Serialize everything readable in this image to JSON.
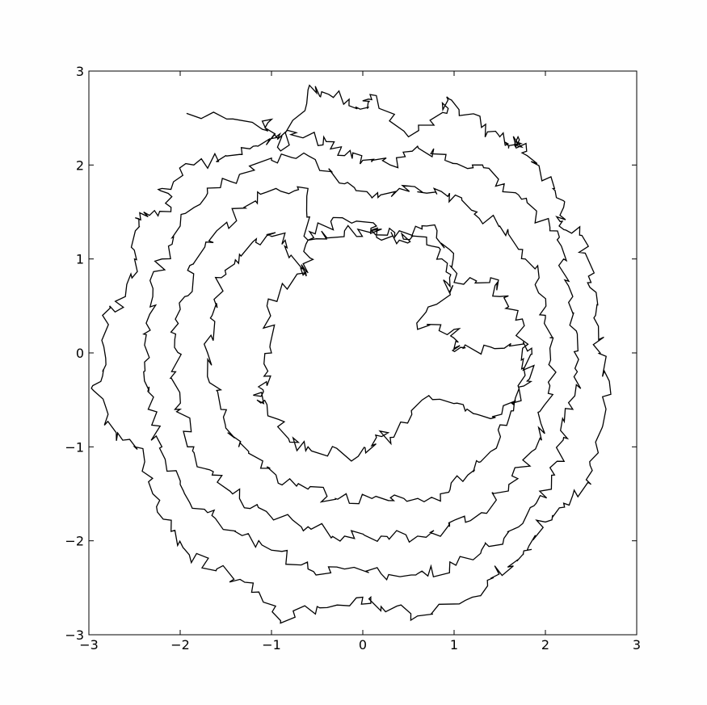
{
  "chart_data": {
    "type": "line",
    "title": "",
    "xlabel": "",
    "ylabel": "",
    "xlim": [
      -3,
      3
    ],
    "ylim": [
      -3,
      3
    ],
    "xticks": [
      -3,
      -2,
      -1,
      0,
      1,
      2,
      3
    ],
    "yticks": [
      -3,
      -2,
      -1,
      0,
      1,
      2,
      3
    ],
    "xtick_labels": [
      "−3",
      "−2",
      "−1",
      "0",
      "1",
      "2",
      "3"
    ],
    "ytick_labels": [
      "−3",
      "−2",
      "−1",
      "0",
      "1",
      "2",
      "3"
    ],
    "grid": false,
    "line_color": "#000000",
    "background": "#ffffff",
    "description": "Single continuous random-walk-like curve confined to an annulus, inner radius about 1.0 and outer radius about 2.8",
    "series": [
      {
        "values_sampled": [
          [
            -1.93,
            2.55
          ],
          [
            -1.1,
            2.38
          ],
          [
            -1.04,
            2.45
          ],
          [
            -0.9,
            2.15
          ],
          [
            -0.6,
            2.8
          ],
          [
            -0.45,
            2.78
          ],
          [
            -0.15,
            2.7
          ],
          [
            0.05,
            2.6
          ],
          [
            0.08,
            2.75
          ],
          [
            0.5,
            2.3
          ],
          [
            0.92,
            2.55
          ],
          [
            0.95,
            2.7
          ],
          [
            1.3,
            2.4
          ],
          [
            1.5,
            2.3
          ],
          [
            1.6,
            2.2
          ],
          [
            1.7,
            2.2
          ],
          [
            1.7,
            2.3
          ],
          [
            1.8,
            2.1
          ],
          [
            2.1,
            1.75
          ],
          [
            2.2,
            1.55
          ],
          [
            2.15,
            1.35
          ],
          [
            2.4,
            1.25
          ],
          [
            2.5,
            0.75
          ],
          [
            2.55,
            0.4
          ],
          [
            2.6,
            0.0
          ],
          [
            2.7,
            -0.3
          ],
          [
            2.55,
            -0.95
          ],
          [
            2.5,
            -1.4
          ],
          [
            2.2,
            -1.6
          ],
          [
            2.0,
            -1.8
          ],
          [
            1.8,
            -2.1
          ],
          [
            1.7,
            -2.2
          ],
          [
            1.4,
            -2.4
          ],
          [
            1.2,
            -2.6
          ],
          [
            0.6,
            -2.8
          ],
          [
            0.2,
            -2.7
          ],
          [
            0.0,
            -2.6
          ],
          [
            -0.5,
            -2.7
          ],
          [
            -0.9,
            -2.85
          ],
          [
            -1.2,
            -2.45
          ],
          [
            -1.6,
            -2.3
          ],
          [
            -1.9,
            -2.15
          ],
          [
            -2.1,
            -1.9
          ],
          [
            -2.3,
            -1.5
          ],
          [
            -2.5,
            -1.0
          ],
          [
            -2.7,
            -0.85
          ],
          [
            -2.95,
            -0.4
          ],
          [
            -2.85,
            -0.2
          ],
          [
            -2.85,
            0.4
          ],
          [
            -2.6,
            0.6
          ],
          [
            -2.5,
            1.0
          ],
          [
            -2.45,
            1.35
          ],
          [
            -2.4,
            1.5
          ],
          [
            -2.1,
            1.55
          ],
          [
            -2.2,
            1.75
          ],
          [
            -1.85,
            2.0
          ],
          [
            -1.5,
            2.1
          ],
          [
            -1.2,
            2.2
          ],
          [
            -0.95,
            2.3
          ],
          [
            -0.7,
            2.3
          ],
          [
            -0.4,
            2.25
          ],
          [
            -0.2,
            2.1
          ],
          [
            0.0,
            2.05
          ],
          [
            0.3,
            2.0
          ],
          [
            0.6,
            2.2
          ],
          [
            0.9,
            2.05
          ],
          [
            1.2,
            2.0
          ],
          [
            1.55,
            1.8
          ],
          [
            1.8,
            1.6
          ],
          [
            2.05,
            1.3
          ],
          [
            2.2,
            1.0
          ],
          [
            2.3,
            0.6
          ],
          [
            2.35,
            0.2
          ],
          [
            2.35,
            -0.2
          ],
          [
            2.3,
            -0.6
          ],
          [
            2.2,
            -0.9
          ],
          [
            2.1,
            -1.3
          ],
          [
            1.9,
            -1.6
          ],
          [
            1.6,
            -1.9
          ],
          [
            1.3,
            -2.1
          ],
          [
            0.95,
            -2.3
          ],
          [
            0.6,
            -2.35
          ],
          [
            0.2,
            -2.35
          ],
          [
            -0.2,
            -2.3
          ],
          [
            -0.6,
            -2.3
          ],
          [
            -1.0,
            -2.1
          ],
          [
            -1.4,
            -1.9
          ],
          [
            -1.7,
            -1.7
          ],
          [
            -2.0,
            -1.4
          ],
          [
            -2.2,
            -1.0
          ],
          [
            -2.35,
            -0.6
          ],
          [
            -2.4,
            -0.2
          ],
          [
            -2.4,
            0.2
          ],
          [
            -2.3,
            0.6
          ],
          [
            -2.2,
            1.0
          ],
          [
            -2.0,
            1.35
          ],
          [
            -1.7,
            1.7
          ],
          [
            -1.35,
            1.9
          ],
          [
            -1.0,
            2.05
          ],
          [
            -0.6,
            2.1
          ],
          [
            -0.2,
            1.8
          ],
          [
            0.1,
            1.65
          ],
          [
            0.4,
            1.75
          ],
          [
            0.7,
            1.7
          ],
          [
            0.95,
            1.7
          ],
          [
            1.25,
            1.5
          ],
          [
            1.5,
            1.35
          ],
          [
            1.75,
            1.1
          ],
          [
            1.9,
            0.75
          ],
          [
            2.0,
            0.4
          ],
          [
            2.05,
            0.05
          ],
          [
            2.05,
            -0.35
          ],
          [
            1.95,
            -0.75
          ],
          [
            1.85,
            -1.05
          ],
          [
            1.6,
            -1.4
          ],
          [
            1.3,
            -1.7
          ],
          [
            0.95,
            -1.85
          ],
          [
            0.6,
            -1.95
          ],
          [
            0.2,
            -1.95
          ],
          [
            -0.2,
            -1.95
          ],
          [
            -0.6,
            -1.85
          ],
          [
            -1.0,
            -1.75
          ],
          [
            -1.35,
            -1.55
          ],
          [
            -1.65,
            -1.3
          ],
          [
            -1.85,
            -1.0
          ],
          [
            -2.0,
            -0.6
          ],
          [
            -2.05,
            -0.2
          ],
          [
            -2.05,
            0.2
          ],
          [
            -1.95,
            0.6
          ],
          [
            -1.85,
            0.95
          ],
          [
            -1.6,
            1.3
          ],
          [
            -1.3,
            1.55
          ],
          [
            -0.95,
            1.75
          ],
          [
            -0.6,
            1.75
          ],
          [
            -0.6,
            1.2
          ],
          [
            -0.2,
            1.3
          ],
          [
            0.1,
            1.3
          ],
          [
            0.4,
            1.3
          ],
          [
            0.7,
            1.35
          ],
          [
            0.95,
            1.1
          ],
          [
            1.0,
            0.75
          ],
          [
            1.4,
            0.8
          ],
          [
            1.5,
            0.6
          ],
          [
            1.7,
            0.45
          ],
          [
            1.75,
            0.05
          ],
          [
            1.7,
            -0.35
          ],
          [
            1.6,
            -0.7
          ],
          [
            1.4,
            -1.05
          ],
          [
            1.15,
            -1.3
          ],
          [
            0.85,
            -1.5
          ],
          [
            0.45,
            -1.55
          ],
          [
            0.1,
            -1.55
          ],
          [
            -0.3,
            -1.55
          ],
          [
            -0.6,
            -1.45
          ],
          [
            -0.95,
            -1.3
          ],
          [
            -1.25,
            -1.05
          ],
          [
            -1.5,
            -0.8
          ],
          [
            -1.6,
            -0.4
          ],
          [
            -1.7,
            0.0
          ],
          [
            -1.65,
            0.4
          ],
          [
            -1.55,
            0.8
          ],
          [
            -1.35,
            1.05
          ],
          [
            -1.05,
            1.25
          ],
          [
            -0.85,
            1.2
          ],
          [
            -0.68,
            0.9
          ],
          [
            -0.65,
            0.85
          ],
          [
            -1.05,
            0.5
          ],
          [
            -1.0,
            0.0
          ],
          [
            -1.05,
            -0.35
          ],
          [
            -1.2,
            -0.45
          ],
          [
            -1.05,
            -0.55
          ],
          [
            -0.8,
            -0.95
          ],
          [
            -0.6,
            -1.0
          ],
          [
            -0.05,
            -1.1
          ],
          [
            0.15,
            -0.9
          ],
          [
            0.3,
            -0.9
          ],
          [
            0.65,
            -0.5
          ],
          [
            1.1,
            -0.55
          ],
          [
            1.4,
            -0.7
          ],
          [
            1.65,
            -0.55
          ],
          [
            1.8,
            -0.3
          ],
          [
            1.85,
            0.05
          ],
          [
            1.55,
            0.05
          ],
          [
            1.1,
            0.05
          ],
          [
            1.0,
            0.05
          ],
          [
            1.0,
            0.25
          ],
          [
            0.6,
            0.25
          ],
          [
            0.95,
            0.65
          ],
          [
            0.95,
            0.8
          ],
          [
            0.85,
            1.1
          ],
          [
            0.55,
            1.25
          ],
          [
            0.4,
            1.2
          ],
          [
            0.15,
            1.25
          ],
          [
            0.15,
            1.35
          ],
          [
            -0.35,
            1.4
          ],
          [
            -0.6,
            1.2
          ],
          [
            -0.6,
            0.85
          ]
        ]
      }
    ]
  }
}
